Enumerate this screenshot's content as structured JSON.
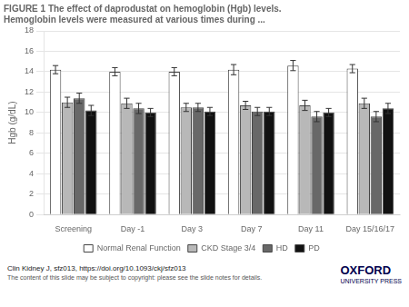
{
  "chart_data": {
    "type": "bar",
    "title": "FIGURE 1 The effect of daprodustat on hemoglobin (Hgb) levels.\nHemoglobin levels were measured at various times during ...",
    "ylabel": "Hgb (g/dL)",
    "categories": [
      "Screening",
      "Day -1",
      "Day 3",
      "Day 7",
      "Day 11",
      "Day 15/16/17"
    ],
    "series": [
      {
        "name": "Normal Renal Function",
        "color": "#ffffff",
        "values": [
          14.2,
          14.0,
          14.0,
          14.2,
          14.6,
          14.3
        ],
        "errors": [
          0.4,
          0.4,
          0.4,
          0.5,
          0.5,
          0.4
        ]
      },
      {
        "name": "CKD Stage 3/4",
        "color": "#b8b8b8",
        "values": [
          11.0,
          10.9,
          10.5,
          10.7,
          10.7,
          10.9
        ],
        "errors": [
          0.5,
          0.5,
          0.4,
          0.4,
          0.5,
          0.5
        ]
      },
      {
        "name": "HD",
        "color": "#686868",
        "values": [
          11.4,
          10.4,
          10.5,
          10.1,
          9.6,
          9.6
        ],
        "errors": [
          0.5,
          0.5,
          0.4,
          0.4,
          0.5,
          0.5
        ]
      },
      {
        "name": "PD",
        "color": "#111111",
        "values": [
          10.2,
          10.0,
          10.1,
          10.1,
          10.0,
          10.4
        ],
        "errors": [
          0.5,
          0.4,
          0.4,
          0.4,
          0.4,
          0.5
        ]
      }
    ],
    "ylim": [
      0,
      18
    ],
    "yticks": [
      0,
      2,
      4,
      6,
      8,
      10,
      12,
      14,
      16,
      18
    ],
    "grid": true,
    "legend": "bottom",
    "annotations": [
      "Clin Kidney J, sfz013, https://doi.org/10.1093/ckj/sfz013",
      "The content of this slide may be subject to copyright: please see the slide notes for details.",
      "OXFORD",
      "UNIVERSITY PRESS"
    ]
  }
}
